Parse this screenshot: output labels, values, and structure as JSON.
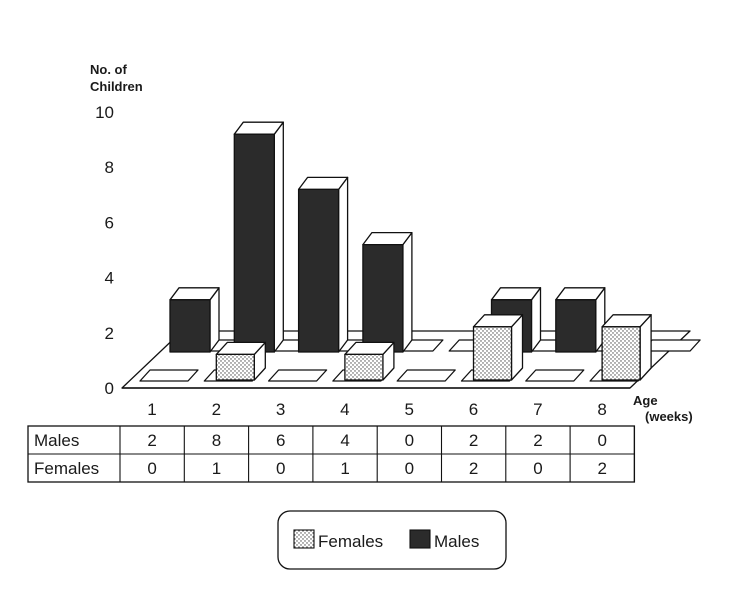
{
  "chart_data": {
    "type": "bar",
    "ylabel": [
      "No. of",
      "Children"
    ],
    "xlabel": [
      "Age",
      "(weeks)"
    ],
    "ylim": [
      0,
      10
    ],
    "yticks": [
      "0",
      "2",
      "4",
      "6",
      "8",
      "10"
    ],
    "categories": [
      "1",
      "2",
      "3",
      "4",
      "5",
      "6",
      "7",
      "8"
    ],
    "series": [
      {
        "name": "Males",
        "values": [
          2,
          8,
          6,
          4,
          0,
          2,
          2,
          0
        ],
        "table_values": [
          "2",
          "8",
          "6",
          "4",
          "0",
          "2",
          "2",
          "0"
        ],
        "color": "#2b2b2b"
      },
      {
        "name": "Females",
        "values": [
          0,
          1,
          0,
          1,
          0,
          2,
          0,
          2
        ],
        "table_values": [
          "0",
          "1",
          "0",
          "1",
          "0",
          "2",
          "0",
          "2"
        ],
        "color": "#dcdcdc"
      }
    ],
    "legend": {
      "position": "bottom-center",
      "items": [
        "Females",
        "Males"
      ]
    },
    "grid": false,
    "style": "3d-bars-with-data-table"
  }
}
